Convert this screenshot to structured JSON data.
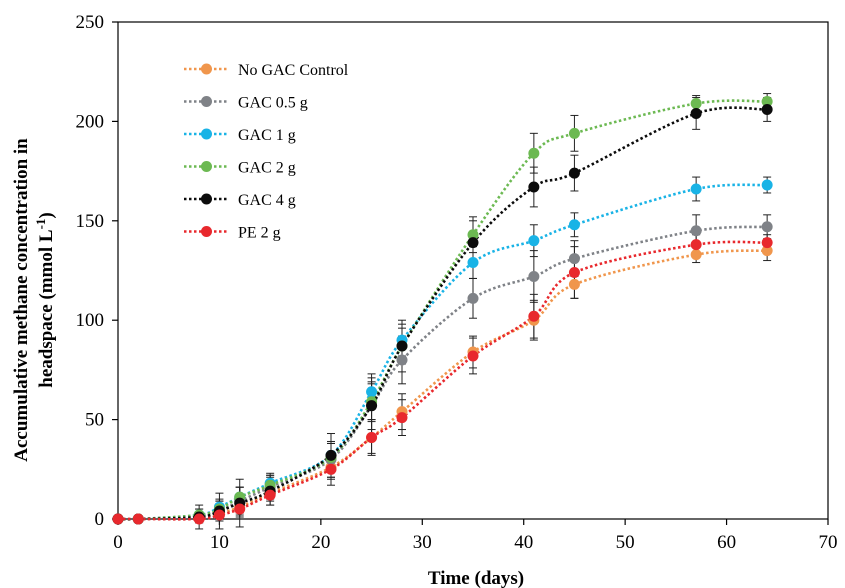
{
  "chart_data": {
    "type": "line",
    "xlabel": "Time (days)",
    "ylabel_line1": "Accumulative methane  concentration in",
    "ylabel_line2": "headspace (mmol L",
    "ylabel_sup": "-1",
    "ylabel_close": ")",
    "xlim": [
      0,
      70
    ],
    "ylim": [
      0,
      250
    ],
    "xticks": [
      "0",
      "10",
      "20",
      "30",
      "40",
      "50",
      "60",
      "70"
    ],
    "yticks": [
      "0",
      "50",
      "100",
      "150",
      "200",
      "250"
    ],
    "legend_position": "top-left",
    "grid": false,
    "series": [
      {
        "name": "No GAC Control",
        "color": "#f0964c",
        "x": [
          0,
          2,
          8,
          10,
          12,
          15,
          21,
          25,
          28,
          35,
          41,
          45,
          57,
          64
        ],
        "y": [
          0,
          0,
          1,
          3,
          6,
          13,
          26,
          41,
          54,
          84,
          100,
          118,
          133,
          135
        ],
        "err": [
          0,
          0,
          1,
          2,
          3,
          4,
          6,
          8,
          9,
          8,
          10,
          7,
          4,
          5
        ]
      },
      {
        "name": "GAC 0.5 g",
        "color": "#7f8287",
        "x": [
          0,
          2,
          8,
          10,
          12,
          15,
          21,
          25,
          28,
          35,
          41,
          45,
          57,
          64
        ],
        "y": [
          0,
          0,
          1,
          4,
          9,
          16,
          30,
          57,
          80,
          111,
          122,
          131,
          145,
          147
        ],
        "err": [
          0,
          0,
          2,
          5,
          7,
          6,
          9,
          12,
          12,
          10,
          13,
          9,
          8,
          6
        ]
      },
      {
        "name": "GAC 1 g",
        "color": "#19b3e6",
        "x": [
          0,
          2,
          8,
          10,
          12,
          15,
          21,
          25,
          28,
          35,
          41,
          45,
          57,
          64
        ],
        "y": [
          0,
          0,
          2,
          6,
          11,
          18,
          32,
          64,
          90,
          129,
          140,
          148,
          166,
          168
        ],
        "err": [
          0,
          0,
          3,
          4,
          5,
          5,
          6,
          7,
          8,
          8,
          8,
          6,
          6,
          4
        ]
      },
      {
        "name": "GAC 2 g",
        "color": "#6cb952",
        "x": [
          0,
          2,
          8,
          10,
          12,
          15,
          21,
          25,
          28,
          35,
          41,
          45,
          57,
          64
        ],
        "y": [
          0,
          0,
          2,
          5,
          11,
          17,
          31,
          59,
          87,
          143,
          184,
          194,
          209,
          210
        ],
        "err": [
          0,
          0,
          3,
          4,
          5,
          5,
          7,
          9,
          9,
          9,
          10,
          9,
          4,
          4
        ]
      },
      {
        "name": "GAC 4 g",
        "color": "#0c0c0c",
        "x": [
          0,
          2,
          8,
          10,
          12,
          15,
          21,
          25,
          28,
          35,
          41,
          45,
          57,
          64
        ],
        "y": [
          0,
          0,
          1,
          4,
          8,
          14,
          32,
          57,
          87,
          139,
          167,
          174,
          204,
          206
        ],
        "err": [
          0,
          0,
          6,
          9,
          12,
          7,
          11,
          16,
          13,
          11,
          10,
          9,
          8,
          6
        ]
      },
      {
        "name": "PE 2 g",
        "color": "#e8282d",
        "x": [
          0,
          2,
          8,
          10,
          12,
          15,
          21,
          25,
          28,
          35,
          41,
          45,
          57,
          64
        ],
        "y": [
          0,
          0,
          0,
          2,
          5,
          12,
          25,
          41,
          51,
          82,
          102,
          124,
          138,
          139
        ],
        "err": [
          0,
          0,
          2,
          3,
          4,
          5,
          8,
          9,
          9,
          9,
          11,
          13,
          5,
          4
        ]
      }
    ]
  }
}
